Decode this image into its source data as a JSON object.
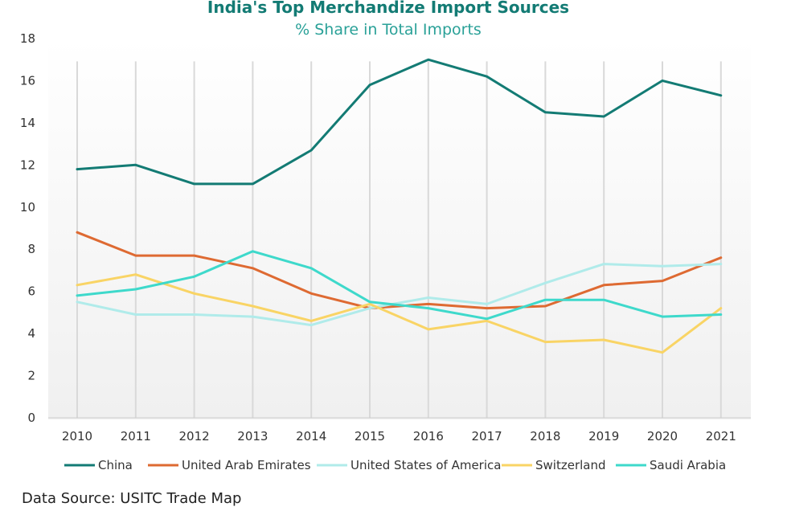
{
  "chart_data": {
    "type": "line",
    "title": "India's Top Merchandize Import Sources",
    "subtitle": "% Share in Total Imports",
    "xlabel": "",
    "ylabel": "",
    "categories": [
      "2010",
      "2011",
      "2012",
      "2013",
      "2014",
      "2015",
      "2016",
      "2017",
      "2018",
      "2019",
      "2020",
      "2021"
    ],
    "ylim": [
      0,
      18
    ],
    "yticks": [
      0,
      2,
      4,
      6,
      8,
      10,
      12,
      14,
      16,
      18
    ],
    "grid": "vertical",
    "legend_position": "bottom",
    "series": [
      {
        "name": "China",
        "color": "#137B74",
        "values": [
          11.8,
          12.0,
          11.1,
          11.1,
          12.7,
          15.8,
          17.0,
          16.2,
          14.5,
          14.3,
          16.0,
          15.3
        ]
      },
      {
        "name": "United Arab Emirates",
        "color": "#DE6A32",
        "values": [
          8.8,
          7.7,
          7.7,
          7.1,
          5.9,
          5.2,
          5.4,
          5.2,
          5.3,
          6.3,
          6.5,
          7.6
        ]
      },
      {
        "name": "United States of America",
        "color": "#B0EBEA",
        "values": [
          5.5,
          4.9,
          4.9,
          4.8,
          4.4,
          5.2,
          5.7,
          5.4,
          6.4,
          7.3,
          7.2,
          7.3
        ]
      },
      {
        "name": "Switzerland",
        "color": "#F9D465",
        "values": [
          6.3,
          6.8,
          5.9,
          5.3,
          4.6,
          5.4,
          4.2,
          4.6,
          3.6,
          3.7,
          3.1,
          5.2
        ]
      },
      {
        "name": "Saudi Arabia",
        "color": "#3ED9CB",
        "values": [
          5.8,
          6.1,
          6.7,
          7.9,
          7.1,
          5.5,
          5.2,
          4.7,
          5.6,
          5.6,
          4.8,
          4.9
        ]
      }
    ]
  },
  "colors": {
    "title": "#137B74",
    "subtitle": "#2AA198",
    "axis": "#cccccc",
    "grid": "#d9d9d9"
  },
  "source": "Data Source: USITC Trade Map"
}
